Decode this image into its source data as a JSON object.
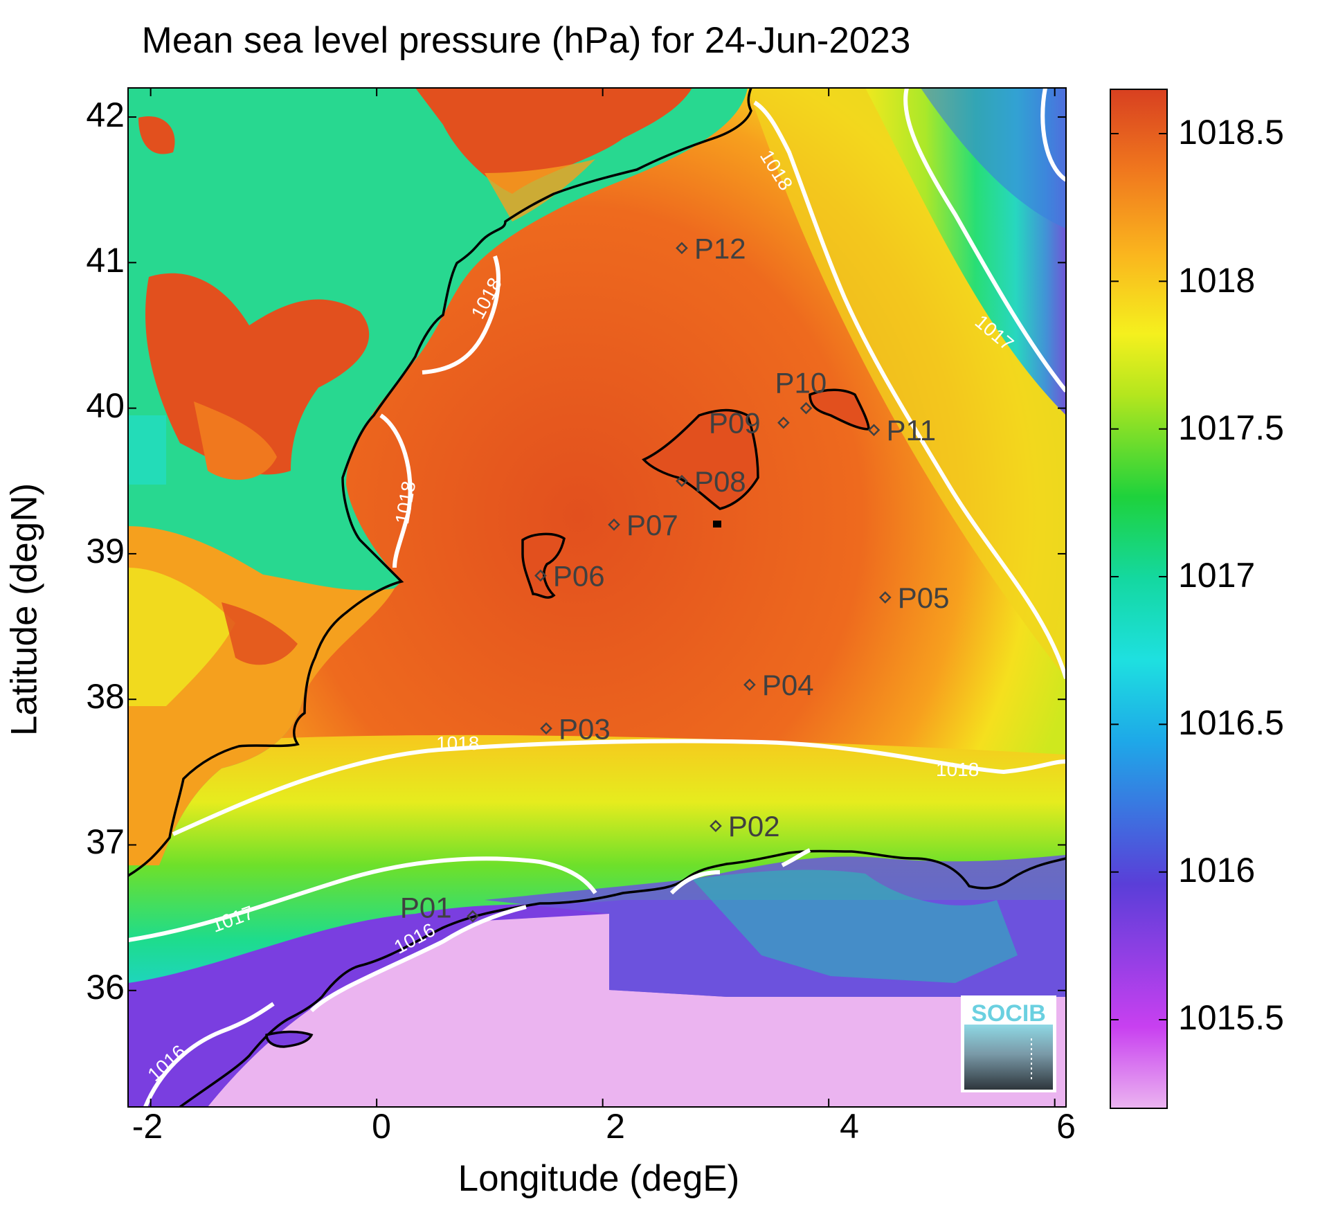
{
  "title": "Mean sea level pressure (hPa) for 24-Jun-2023",
  "xlabel": "Longitude (degE)",
  "ylabel": "Latitude (degN)",
  "x_ticks": [
    "-2",
    "0",
    "2",
    "4",
    "6"
  ],
  "y_ticks": [
    "42",
    "41",
    "40",
    "39",
    "38",
    "37",
    "36"
  ],
  "colorbar": {
    "ticks": [
      "1018.5",
      "1018",
      "1017.5",
      "1017",
      "1016.5",
      "1016",
      "1015.5"
    ],
    "range": [
      1015.2,
      1018.65
    ],
    "colors": [
      "#ebb4f0",
      "#c840f0",
      "#5a3ed8",
      "#1ee0e0",
      "#14d8a0",
      "#1ed23c",
      "#f5f01e",
      "#fab41e",
      "#f0781e",
      "#d84020"
    ]
  },
  "contour_labels": [
    "1018",
    "1018",
    "1018",
    "1018",
    "1018",
    "1017",
    "1017",
    "1016",
    "1016"
  ],
  "stations": [
    {
      "name": "P01",
      "lon": 0.85,
      "lat": 36.51
    },
    {
      "name": "P02",
      "lon": 3.0,
      "lat": 37.13
    },
    {
      "name": "P03",
      "lon": 1.5,
      "lat": 37.8
    },
    {
      "name": "P04",
      "lon": 3.3,
      "lat": 38.1
    },
    {
      "name": "P05",
      "lon": 4.5,
      "lat": 38.7
    },
    {
      "name": "P06",
      "lon": 1.45,
      "lat": 38.85
    },
    {
      "name": "P07",
      "lon": 2.1,
      "lat": 39.2
    },
    {
      "name": "P08",
      "lon": 2.7,
      "lat": 39.5
    },
    {
      "name": "P09",
      "lon": 3.6,
      "lat": 39.9
    },
    {
      "name": "P10",
      "lon": 3.8,
      "lat": 40.0
    },
    {
      "name": "P11",
      "lon": 4.4,
      "lat": 39.85
    },
    {
      "name": "P12",
      "lon": 2.7,
      "lat": 41.1
    }
  ],
  "logo": "SOCIB"
}
